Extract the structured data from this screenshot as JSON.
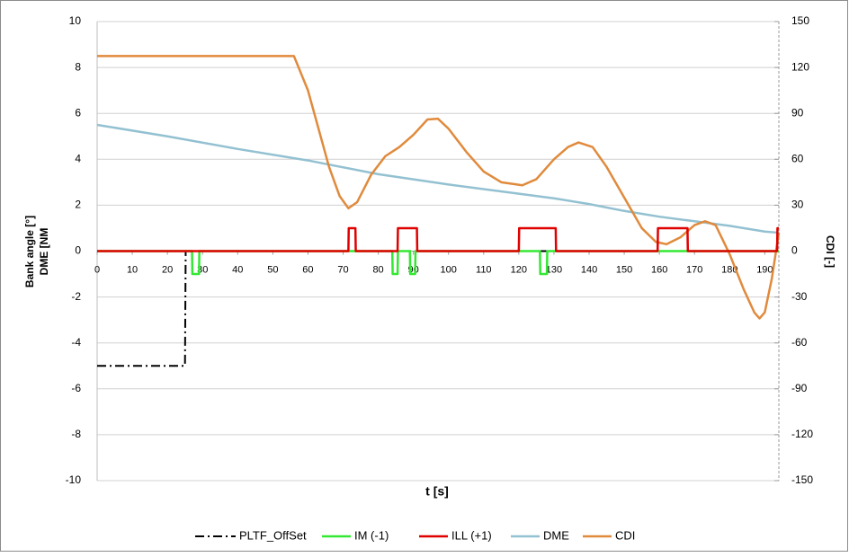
{
  "chart_data": {
    "type": "line",
    "xlabel": "t [s]",
    "ylabel": [
      "Bank angle [°]",
      "DME [NM"
    ],
    "y2label": "CDI [-]",
    "xlim": [
      0,
      194
    ],
    "xticks": [
      0,
      10,
      20,
      30,
      40,
      50,
      60,
      70,
      80,
      90,
      100,
      110,
      120,
      130,
      140,
      150,
      160,
      170,
      180,
      190
    ],
    "ylim": [
      -10,
      10
    ],
    "yticks": [
      -10,
      -8,
      -6,
      -4,
      -2,
      0,
      2,
      4,
      6,
      8,
      10
    ],
    "y2lim": [
      -150,
      150
    ],
    "y2ticks": [
      -150,
      -120,
      -90,
      -60,
      -30,
      0,
      30,
      60,
      90,
      120,
      150
    ],
    "grid": true,
    "legend": "bottom",
    "series": [
      {
        "name": "PLTF_OffSet",
        "color": "#000000",
        "dash": "dashdot",
        "x": [
          0,
          25,
          25.2,
          194
        ],
        "values": [
          -5,
          -5,
          0,
          0
        ]
      },
      {
        "name": "IM (-1)",
        "color": "#33e833",
        "x": [
          0,
          27,
          27.1,
          29,
          29.1,
          84,
          84.1,
          85.5,
          85.6,
          89,
          89.1,
          90.5,
          90.6,
          126,
          126.1,
          128,
          128.1,
          194
        ],
        "values": [
          0,
          0,
          -1,
          -1,
          0,
          0,
          -1,
          -1,
          0,
          0,
          -1,
          -1,
          0,
          0,
          -1,
          -1,
          0,
          0
        ]
      },
      {
        "name": "ILL (+1)",
        "color": "#e00000",
        "x": [
          0,
          71.5,
          71.6,
          73.5,
          73.6,
          85.5,
          85.6,
          91,
          91.1,
          120,
          120.1,
          130.5,
          130.6,
          159.5,
          159.6,
          168,
          168.1,
          193.5,
          193.6,
          194
        ],
        "values": [
          0,
          0,
          1,
          1,
          0,
          0,
          1,
          1,
          0,
          0,
          1,
          1,
          0,
          0,
          1,
          1,
          0,
          0,
          1,
          1
        ]
      },
      {
        "name": "DME",
        "color": "#93c1d1",
        "x": [
          0,
          20,
          40,
          60,
          80,
          100,
          120,
          130,
          140,
          150,
          160,
          170,
          180,
          190,
          194
        ],
        "values": [
          5.5,
          5.0,
          4.45,
          3.95,
          3.35,
          2.9,
          2.5,
          2.3,
          2.05,
          1.75,
          1.5,
          1.3,
          1.1,
          0.85,
          0.8
        ]
      },
      {
        "name": "CDI",
        "color": "#e08a3c",
        "axis": "y2",
        "x": [
          0,
          56,
          60,
          63,
          66,
          69,
          71.5,
          74,
          78,
          82,
          86,
          90,
          94,
          97,
          100,
          105,
          110,
          115,
          121,
          125,
          130,
          134,
          137,
          141,
          145,
          150,
          155,
          159,
          162,
          166,
          170,
          173,
          176,
          180,
          184,
          187,
          188.5,
          190,
          192,
          194
        ],
        "values": [
          127.5,
          127.5,
          105,
          80,
          55,
          36,
          28,
          32,
          50,
          62,
          68,
          76,
          86,
          86.5,
          80,
          65,
          52,
          45,
          43,
          47,
          60,
          68,
          71,
          68,
          55,
          35,
          15,
          6,
          4.5,
          9,
          17,
          19.5,
          17,
          -2,
          -25,
          -40,
          -44,
          -40,
          -18,
          12
        ]
      }
    ]
  }
}
